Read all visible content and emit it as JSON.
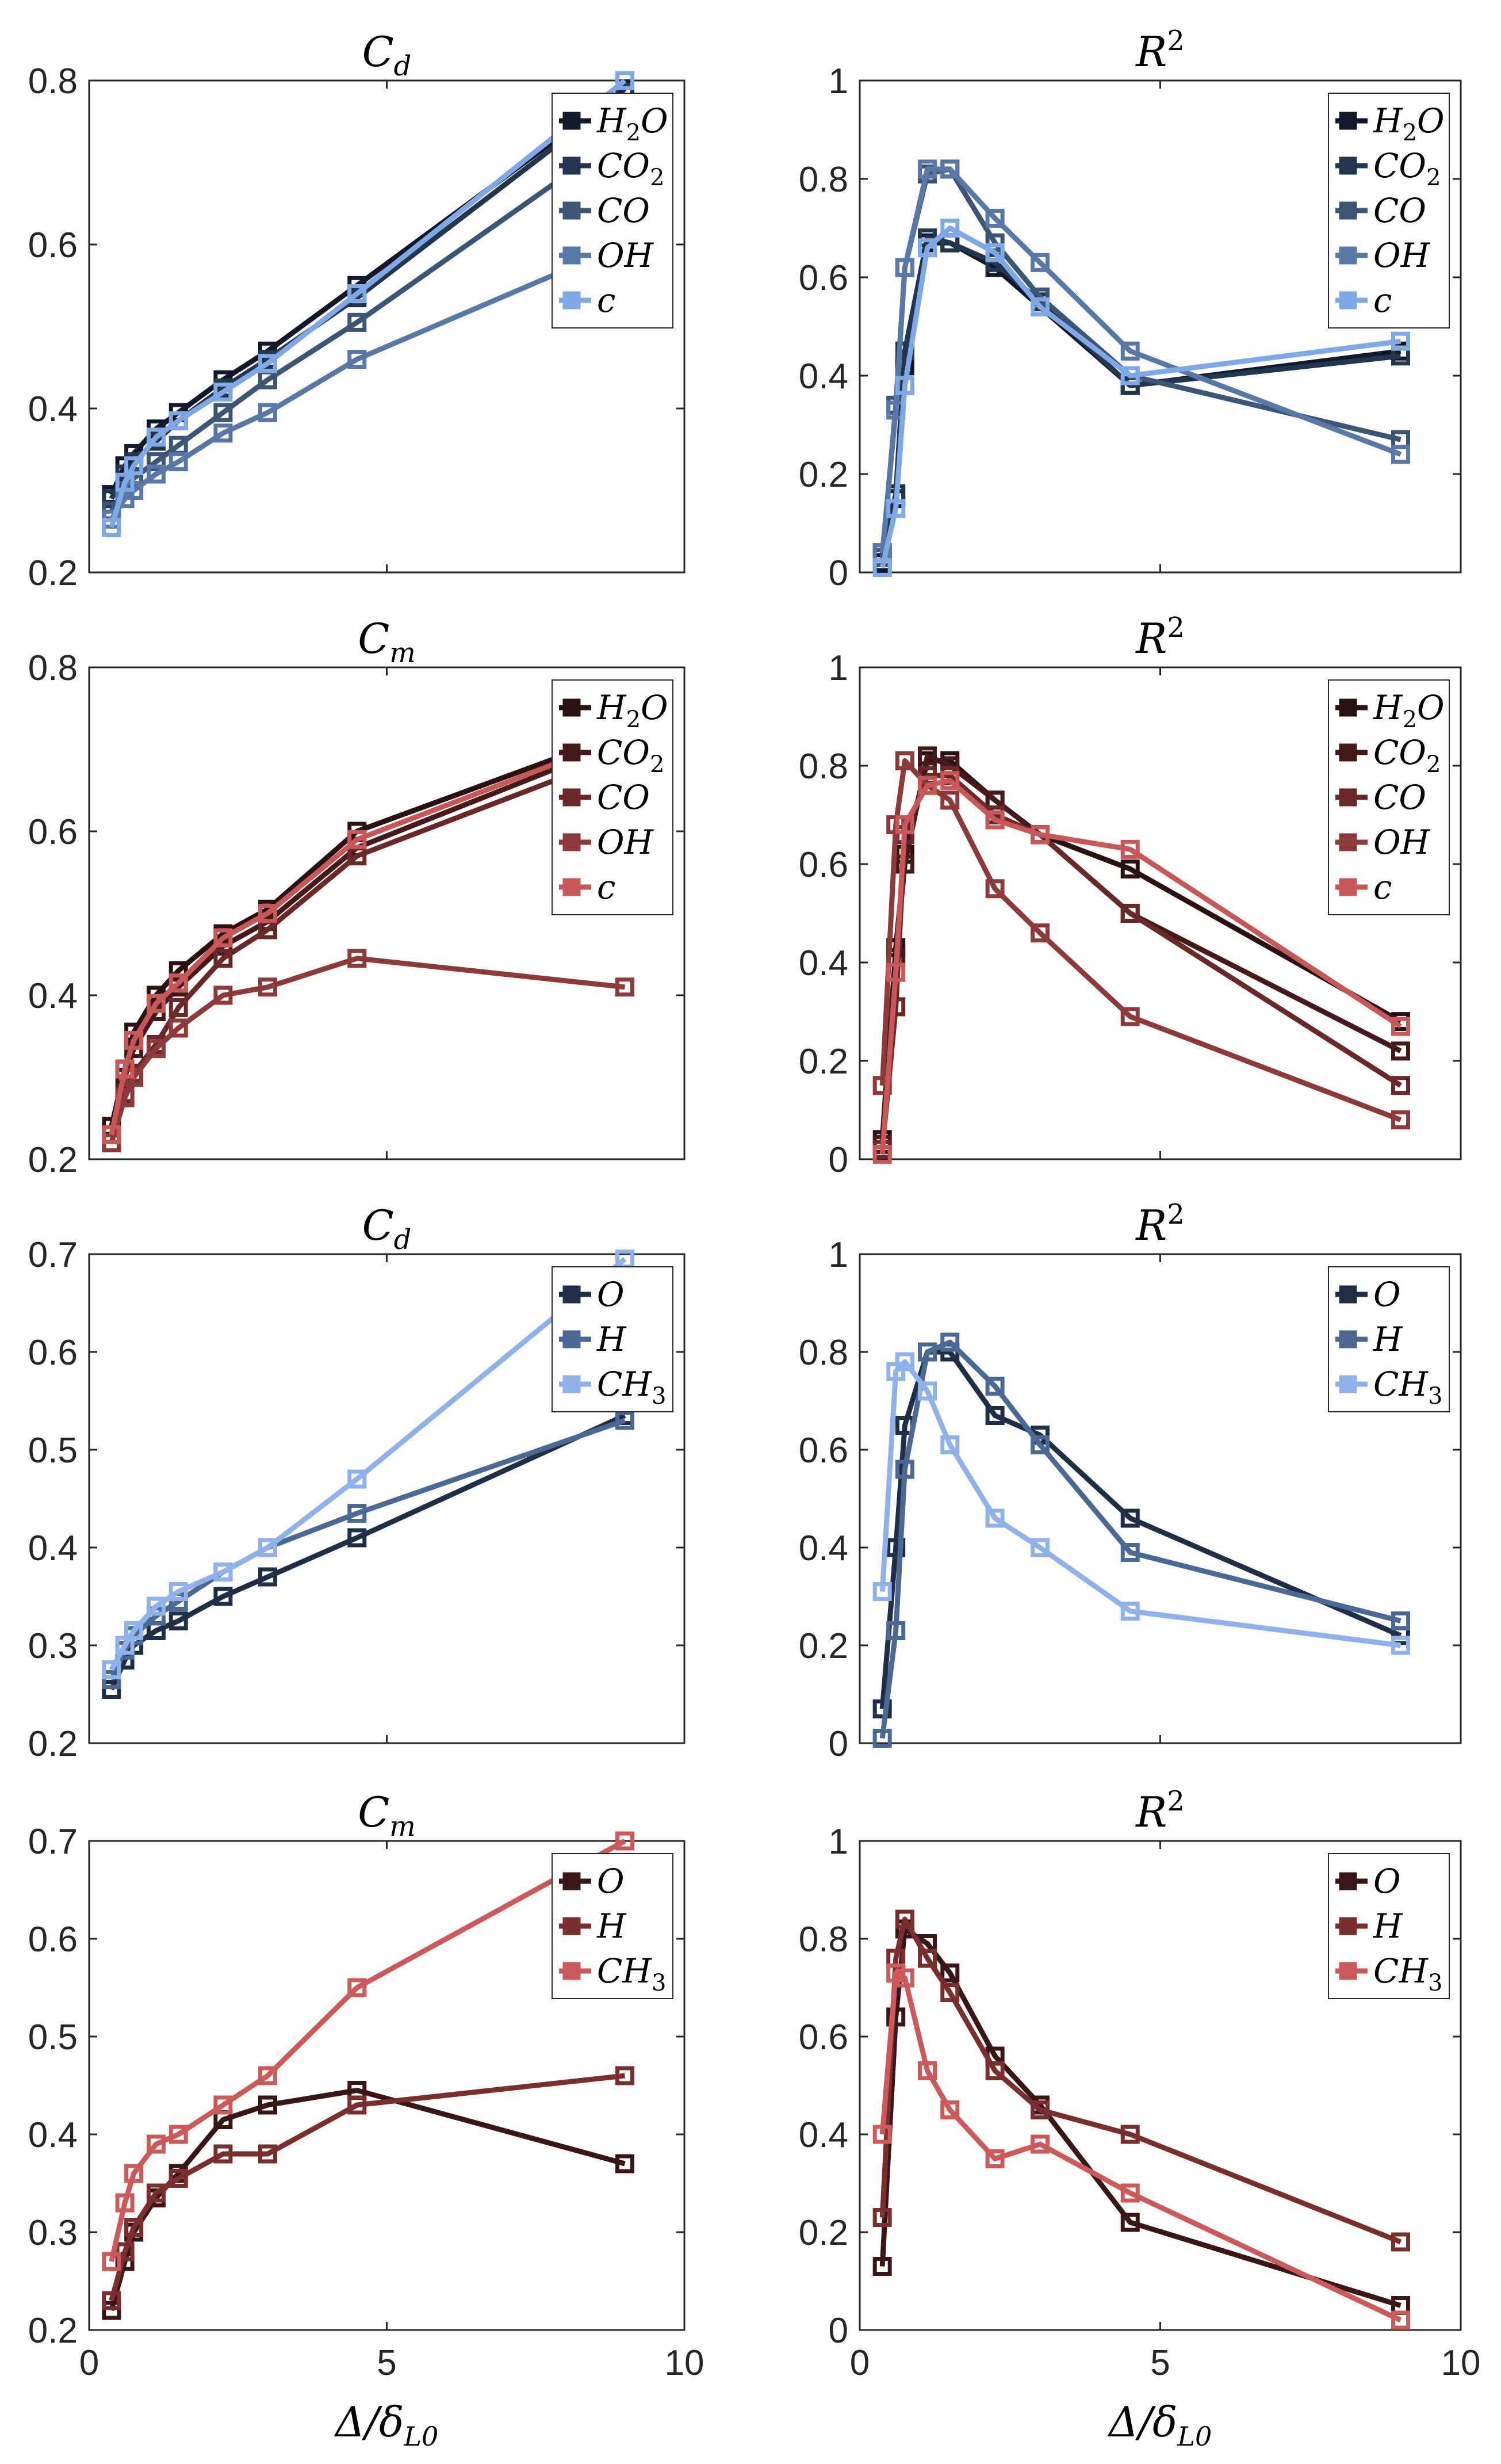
{
  "figure": {
    "xlabel": "Δ/δ",
    "xlabel_sub": "L0"
  },
  "series_colors": {
    "blue": [
      "#13192a",
      "#233650",
      "#3b5676",
      "#5878a8",
      "#7fa8e6"
    ],
    "red": [
      "#2a1212",
      "#461a1a",
      "#6a2828",
      "#8e3a3a",
      "#c85858"
    ],
    "blue3": [
      "#1f2f47",
      "#4a6a95",
      "#8fb2ea"
    ],
    "red3": [
      "#3b1616",
      "#7a2e2e",
      "#cc5a5a"
    ]
  },
  "chart_data": [
    {
      "type": "line",
      "title": "C",
      "title_sub": "d",
      "xlim": [
        0,
        10
      ],
      "ylim": [
        0.2,
        0.8
      ],
      "xticks": [
        "0",
        "5",
        "10"
      ],
      "yticks": [
        "0.2",
        "0.4",
        "0.6",
        "0.8"
      ],
      "x": [
        0.375,
        0.6,
        0.75,
        1.125,
        1.5,
        2.25,
        3.0,
        4.5,
        9.0
      ],
      "series": [
        {
          "name": "H",
          "name_sub": "2",
          "name_tail": "O",
          "values": [
            0.295,
            0.33,
            0.345,
            0.375,
            0.395,
            0.435,
            0.47,
            0.55,
            0.79
          ]
        },
        {
          "name": "CO",
          "name_sub": "2",
          "name_tail": "",
          "values": [
            0.29,
            0.32,
            0.335,
            0.36,
            0.385,
            0.425,
            0.46,
            0.535,
            0.785
          ]
        },
        {
          "name": "CO",
          "name_sub": "",
          "name_tail": "",
          "values": [
            0.275,
            0.3,
            0.315,
            0.335,
            0.355,
            0.395,
            0.435,
            0.505,
            0.735
          ]
        },
        {
          "name": "OH",
          "name_sub": "",
          "name_tail": "",
          "values": [
            0.265,
            0.29,
            0.3,
            0.32,
            0.335,
            0.37,
            0.395,
            0.46,
            0.6
          ]
        },
        {
          "name": "c",
          "name_sub": "",
          "name_tail": "",
          "values": [
            0.255,
            0.31,
            0.33,
            0.365,
            0.385,
            0.42,
            0.455,
            0.54,
            0.8
          ]
        }
      ]
    },
    {
      "type": "line",
      "title": "R",
      "title_sup": "2",
      "xlim": [
        0,
        10
      ],
      "ylim": [
        0,
        1
      ],
      "xticks": [
        "0",
        "5",
        "10"
      ],
      "yticks": [
        "0",
        "0.2",
        "0.4",
        "0.6",
        "0.8",
        "1"
      ],
      "x": [
        0.375,
        0.6,
        0.75,
        1.125,
        1.5,
        2.25,
        3.0,
        4.5,
        9.0
      ],
      "series": [
        {
          "name": "H",
          "name_sub": "2",
          "name_tail": "O",
          "values": [
            0.02,
            0.15,
            0.42,
            0.67,
            0.67,
            0.62,
            0.54,
            0.38,
            0.45
          ]
        },
        {
          "name": "CO",
          "name_sub": "2",
          "name_tail": "",
          "values": [
            0.04,
            0.16,
            0.45,
            0.68,
            0.67,
            0.63,
            0.55,
            0.38,
            0.44
          ]
        },
        {
          "name": "CO",
          "name_sub": "",
          "name_tail": "",
          "values": [
            0.03,
            0.34,
            0.62,
            0.81,
            0.82,
            0.67,
            0.56,
            0.4,
            0.27
          ]
        },
        {
          "name": "OH",
          "name_sub": "",
          "name_tail": "",
          "values": [
            0.04,
            0.33,
            0.62,
            0.82,
            0.82,
            0.72,
            0.63,
            0.45,
            0.24
          ]
        },
        {
          "name": "c",
          "name_sub": "",
          "name_tail": "",
          "values": [
            0.01,
            0.13,
            0.38,
            0.66,
            0.7,
            0.65,
            0.54,
            0.4,
            0.47
          ]
        }
      ]
    },
    {
      "type": "line",
      "title": "C",
      "title_sub": "m",
      "xlim": [
        0,
        10
      ],
      "ylim": [
        0.2,
        0.8
      ],
      "xticks": [
        "0",
        "5",
        "10"
      ],
      "yticks": [
        "0.2",
        "0.4",
        "0.6",
        "0.8"
      ],
      "x": [
        0.375,
        0.6,
        0.75,
        1.125,
        1.5,
        2.25,
        3.0,
        4.5,
        9.0
      ],
      "series": [
        {
          "name": "H",
          "name_sub": "2",
          "name_tail": "O",
          "values": [
            0.24,
            0.31,
            0.355,
            0.4,
            0.43,
            0.475,
            0.505,
            0.6,
            0.72
          ]
        },
        {
          "name": "CO",
          "name_sub": "2",
          "name_tail": "",
          "values": [
            0.23,
            0.3,
            0.335,
            0.38,
            0.41,
            0.46,
            0.49,
            0.58,
            0.71
          ]
        },
        {
          "name": "CO",
          "name_sub": "",
          "name_tail": "",
          "values": [
            0.22,
            0.28,
            0.305,
            0.34,
            0.385,
            0.445,
            0.48,
            0.57,
            0.695
          ]
        },
        {
          "name": "OH",
          "name_sub": "",
          "name_tail": "",
          "values": [
            0.22,
            0.275,
            0.3,
            0.335,
            0.36,
            0.4,
            0.41,
            0.445,
            0.41
          ]
        },
        {
          "name": "c",
          "name_sub": "",
          "name_tail": "",
          "values": [
            0.23,
            0.31,
            0.345,
            0.39,
            0.415,
            0.47,
            0.5,
            0.59,
            0.715
          ]
        }
      ]
    },
    {
      "type": "line",
      "title": "R",
      "title_sup": "2",
      "xlim": [
        0,
        10
      ],
      "ylim": [
        0,
        1
      ],
      "xticks": [
        "0",
        "5",
        "10"
      ],
      "yticks": [
        "0",
        "0.2",
        "0.4",
        "0.6",
        "0.8",
        "1"
      ],
      "x": [
        0.375,
        0.6,
        0.75,
        1.125,
        1.5,
        2.25,
        3.0,
        4.5,
        9.0
      ],
      "series": [
        {
          "name": "H",
          "name_sub": "2",
          "name_tail": "O",
          "values": [
            0.04,
            0.43,
            0.62,
            0.81,
            0.81,
            0.73,
            0.66,
            0.59,
            0.28
          ]
        },
        {
          "name": "CO",
          "name_sub": "2",
          "name_tail": "",
          "values": [
            0.03,
            0.41,
            0.6,
            0.82,
            0.8,
            0.73,
            0.66,
            0.5,
            0.22
          ]
        },
        {
          "name": "CO",
          "name_sub": "",
          "name_tail": "",
          "values": [
            0.02,
            0.31,
            0.66,
            0.78,
            0.78,
            0.7,
            0.66,
            0.5,
            0.15
          ]
        },
        {
          "name": "OH",
          "name_sub": "",
          "name_tail": "",
          "values": [
            0.15,
            0.68,
            0.81,
            0.76,
            0.73,
            0.55,
            0.46,
            0.29,
            0.08
          ]
        },
        {
          "name": "c",
          "name_sub": "",
          "name_tail": "",
          "values": [
            0.01,
            0.38,
            0.68,
            0.76,
            0.77,
            0.69,
            0.66,
            0.63,
            0.27
          ]
        }
      ]
    },
    {
      "type": "line",
      "title": "C",
      "title_sub": "d",
      "xlim": [
        0,
        10
      ],
      "ylim": [
        0.2,
        0.7
      ],
      "xticks": [
        "0",
        "5",
        "10"
      ],
      "yticks": [
        "0.2",
        "0.3",
        "0.4",
        "0.5",
        "0.6",
        "0.7"
      ],
      "x": [
        0.375,
        0.6,
        0.75,
        1.125,
        1.5,
        2.25,
        3.0,
        4.5,
        9.0
      ],
      "series": [
        {
          "name": "O",
          "name_sub": "",
          "name_tail": "",
          "values": [
            0.255,
            0.285,
            0.3,
            0.315,
            0.325,
            0.35,
            0.37,
            0.41,
            0.535
          ]
        },
        {
          "name": "H",
          "name_sub": "",
          "name_tail": "",
          "values": [
            0.265,
            0.295,
            0.31,
            0.33,
            0.345,
            0.375,
            0.4,
            0.435,
            0.53
          ]
        },
        {
          "name": "CH",
          "name_sub": "3",
          "name_tail": "",
          "values": [
            0.275,
            0.3,
            0.315,
            0.34,
            0.355,
            0.375,
            0.4,
            0.47,
            0.695
          ]
        }
      ]
    },
    {
      "type": "line",
      "title": "R",
      "title_sup": "2",
      "xlim": [
        0,
        10
      ],
      "ylim": [
        0,
        1
      ],
      "xticks": [
        "0",
        "5",
        "10"
      ],
      "yticks": [
        "0",
        "0.2",
        "0.4",
        "0.6",
        "0.8",
        "1"
      ],
      "x": [
        0.375,
        0.6,
        0.75,
        1.125,
        1.5,
        2.25,
        3.0,
        4.5,
        9.0
      ],
      "series": [
        {
          "name": "O",
          "name_sub": "",
          "name_tail": "",
          "values": [
            0.07,
            0.4,
            0.65,
            0.8,
            0.8,
            0.67,
            0.63,
            0.46,
            0.22
          ]
        },
        {
          "name": "H",
          "name_sub": "",
          "name_tail": "",
          "values": [
            0.01,
            0.23,
            0.56,
            0.8,
            0.82,
            0.73,
            0.61,
            0.39,
            0.25
          ]
        },
        {
          "name": "CH",
          "name_sub": "3",
          "name_tail": "",
          "values": [
            0.31,
            0.76,
            0.78,
            0.72,
            0.61,
            0.46,
            0.4,
            0.27,
            0.2
          ]
        }
      ]
    },
    {
      "type": "line",
      "title": "C",
      "title_sub": "m",
      "xlim": [
        0,
        10
      ],
      "ylim": [
        0.2,
        0.7
      ],
      "xticks": [
        "0",
        "5",
        "10"
      ],
      "yticks": [
        "0.2",
        "0.3",
        "0.4",
        "0.5",
        "0.6",
        "0.7"
      ],
      "xlabel_shown": true,
      "x": [
        0.375,
        0.6,
        0.75,
        1.125,
        1.5,
        2.25,
        3.0,
        4.5,
        9.0
      ],
      "series": [
        {
          "name": "O",
          "name_sub": "",
          "name_tail": "",
          "values": [
            0.22,
            0.27,
            0.3,
            0.335,
            0.36,
            0.415,
            0.43,
            0.445,
            0.37
          ]
        },
        {
          "name": "H",
          "name_sub": "",
          "name_tail": "",
          "values": [
            0.23,
            0.28,
            0.305,
            0.34,
            0.355,
            0.38,
            0.38,
            0.43,
            0.46
          ]
        },
        {
          "name": "CH",
          "name_sub": "3",
          "name_tail": "",
          "values": [
            0.27,
            0.33,
            0.36,
            0.39,
            0.4,
            0.43,
            0.46,
            0.55,
            0.7
          ]
        }
      ]
    },
    {
      "type": "line",
      "title": "R",
      "title_sup": "2",
      "xlim": [
        0,
        10
      ],
      "ylim": [
        0,
        1
      ],
      "xticks": [
        "0",
        "5",
        "10"
      ],
      "yticks": [
        "0",
        "0.2",
        "0.4",
        "0.6",
        "0.8",
        "1"
      ],
      "xlabel_shown": true,
      "x": [
        0.375,
        0.6,
        0.75,
        1.125,
        1.5,
        2.25,
        3.0,
        4.5,
        9.0
      ],
      "series": [
        {
          "name": "O",
          "name_sub": "",
          "name_tail": "",
          "values": [
            0.13,
            0.64,
            0.82,
            0.79,
            0.73,
            0.56,
            0.46,
            0.22,
            0.05
          ]
        },
        {
          "name": "H",
          "name_sub": "",
          "name_tail": "",
          "values": [
            0.23,
            0.76,
            0.84,
            0.76,
            0.69,
            0.53,
            0.45,
            0.4,
            0.18
          ]
        },
        {
          "name": "CH",
          "name_sub": "3",
          "name_tail": "",
          "values": [
            0.4,
            0.73,
            0.72,
            0.53,
            0.45,
            0.35,
            0.38,
            0.28,
            0.02
          ]
        }
      ]
    }
  ]
}
